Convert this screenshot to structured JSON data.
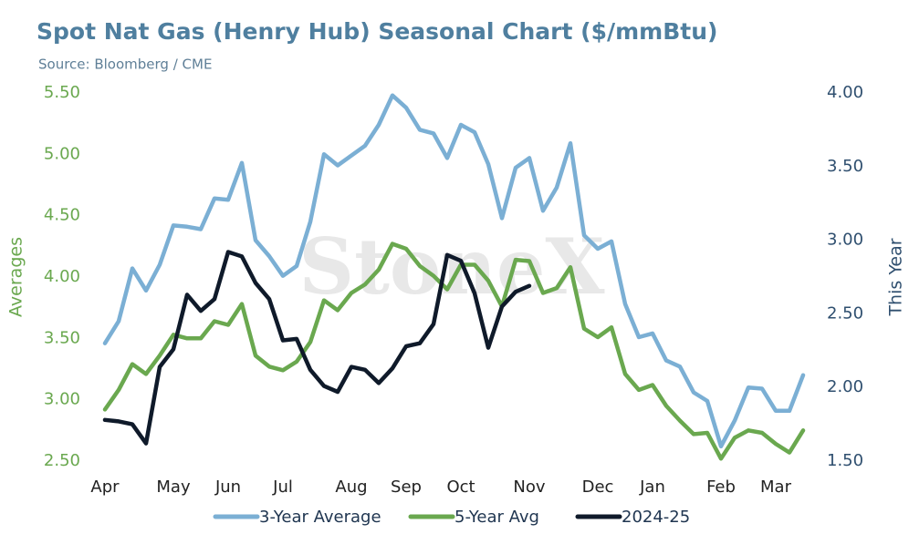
{
  "chart_data": {
    "type": "line",
    "title": "Spot Nat Gas (Henry Hub) Seasonal Chart ($/mmBtu)",
    "subtitle": "Source: Bloomberg / CME",
    "watermark": "StoneX",
    "y_label": "Averages",
    "y2_label": "This Year",
    "categories": [
      "Apr",
      null,
      null,
      null,
      null,
      "May",
      null,
      null,
      null,
      "Jun",
      null,
      null,
      null,
      "Jul",
      null,
      null,
      null,
      null,
      "Aug",
      null,
      null,
      null,
      "Sep",
      null,
      null,
      null,
      "Oct",
      null,
      null,
      null,
      null,
      "Nov",
      null,
      null,
      null,
      null,
      "Dec",
      null,
      null,
      null,
      "Jan",
      null,
      null,
      null,
      null,
      "Feb",
      null,
      null,
      null,
      "Mar",
      null,
      null
    ],
    "ylim": [
      2.5,
      5.5
    ],
    "yticks": [
      {
        "value": 2.5,
        "label": "2.50"
      },
      {
        "value": 3,
        "label": "3.00"
      },
      {
        "value": 3.5,
        "label": "3.50"
      },
      {
        "value": 4,
        "label": "4.00"
      },
      {
        "value": 4.5,
        "label": "4.50"
      },
      {
        "value": 5,
        "label": "5.00"
      },
      {
        "value": 5.5,
        "label": "5.50"
      }
    ],
    "y2lim": [
      1.5,
      4
    ],
    "y2ticks": [
      {
        "value": 1.5,
        "label": "1.50"
      },
      {
        "value": 2,
        "label": "2.00"
      },
      {
        "value": 2.5,
        "label": "2.50"
      },
      {
        "value": 3,
        "label": "3.00"
      },
      {
        "value": 3.5,
        "label": "3.50"
      },
      {
        "value": 4,
        "label": "4.00"
      }
    ],
    "grid": false,
    "legend": "bottom",
    "series": [
      {
        "name": "3-Year Average",
        "color": "#7bafd4",
        "values": [
          3.46,
          3.64,
          4.07,
          3.89,
          4.1,
          4.42,
          4.41,
          4.39,
          4.64,
          4.63,
          4.93,
          4.3,
          4.17,
          4.01,
          4.09,
          4.45,
          5.0,
          4.91,
          4.99,
          5.07,
          5.24,
          5.48,
          5.38,
          5.2,
          5.17,
          4.97,
          5.24,
          5.18,
          4.92,
          4.48,
          4.89,
          4.97,
          4.54,
          4.73,
          5.09,
          4.34,
          4.23,
          4.29,
          3.78,
          3.51,
          3.54,
          3.32,
          3.27,
          3.06,
          2.99,
          2.62,
          2.83,
          3.1,
          3.09,
          2.91,
          2.91,
          3.2
        ]
      },
      {
        "name": "5-Year Avg",
        "color": "#6aa84f",
        "values": [
          2.92,
          3.08,
          3.29,
          3.21,
          3.36,
          3.53,
          3.5,
          3.5,
          3.64,
          3.61,
          3.78,
          3.36,
          3.27,
          3.24,
          3.31,
          3.47,
          3.81,
          3.73,
          3.87,
          3.94,
          4.06,
          4.27,
          4.23,
          4.09,
          4.01,
          3.9,
          4.1,
          4.1,
          3.97,
          3.76,
          4.14,
          4.13,
          3.87,
          3.91,
          4.08,
          3.58,
          3.51,
          3.59,
          3.21,
          3.08,
          3.12,
          2.95,
          2.83,
          2.72,
          2.73,
          2.52,
          2.69,
          2.75,
          2.73,
          2.64,
          2.57,
          2.75
        ]
      },
      {
        "name": "2024-25",
        "color": "#0f1a2a",
        "axis": "y2",
        "values": [
          1.78,
          1.77,
          1.75,
          1.62,
          2.14,
          2.26,
          2.63,
          2.52,
          2.6,
          2.92,
          2.89,
          2.71,
          2.6,
          2.32,
          2.33,
          2.12,
          2.01,
          1.97,
          2.14,
          2.12,
          2.03,
          2.13,
          2.28,
          2.3,
          2.43,
          2.9,
          2.86,
          2.64,
          2.27,
          2.55,
          2.65,
          2.69,
          null,
          null,
          null,
          null,
          null,
          null,
          null,
          null,
          null,
          null,
          null,
          null,
          null,
          null,
          null,
          null,
          null,
          null,
          null,
          null
        ]
      }
    ]
  }
}
